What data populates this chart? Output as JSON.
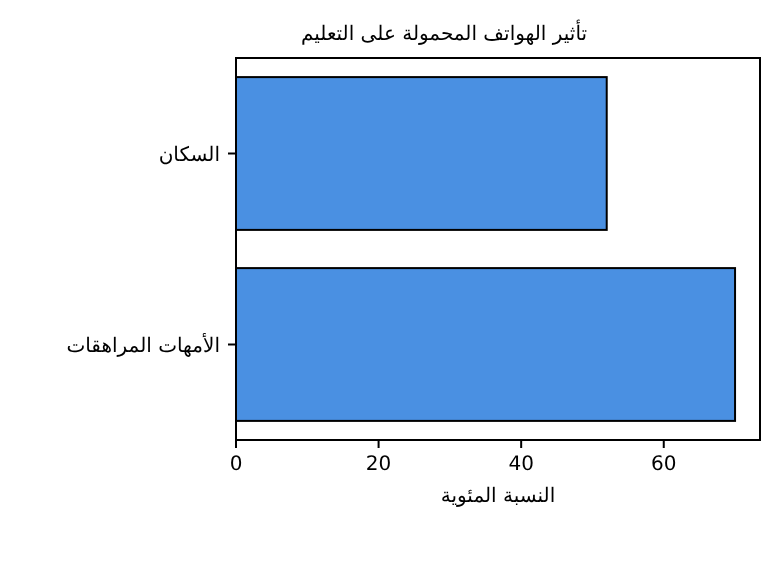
{
  "chart_data": {
    "type": "bar",
    "orientation": "horizontal",
    "title": "تأثير الهواتف المحمولة على التعليم",
    "xlabel": "النسبة المئوية",
    "categories": [
      "السكان",
      "الأمهات المراهقات"
    ],
    "values": [
      52,
      70
    ],
    "color": "#4a90e2",
    "xlim": [
      0,
      73.5
    ],
    "xticks": [
      0,
      20,
      40,
      60
    ],
    "grid": false
  }
}
